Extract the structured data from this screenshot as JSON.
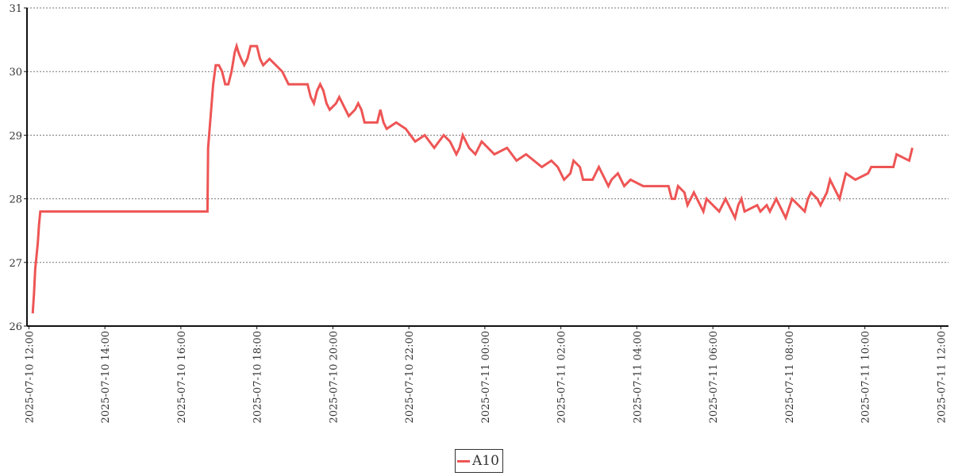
{
  "chart_data": {
    "type": "line",
    "title": "",
    "xlabel": "",
    "ylabel": "",
    "ylim": [
      26,
      31
    ],
    "xlim": [
      "2025-07-10 11:57",
      "2025-07-11 12:12"
    ],
    "y_ticks": [
      "26",
      "27",
      "28",
      "29",
      "30",
      "31"
    ],
    "x_ticks": [
      "2025-07-10 12:00",
      "2025-07-10 14:00",
      "2025-07-10 16:00",
      "2025-07-10 18:00",
      "2025-07-10 20:00",
      "2025-07-10 22:00",
      "2025-07-11 00:00",
      "2025-07-11 02:00",
      "2025-07-11 04:00",
      "2025-07-11 06:00",
      "2025-07-11 08:00",
      "2025-07-11 10:00",
      "2025-07-11 12:00"
    ],
    "grid": "horizontal-dotted",
    "legend_position": "bottom-center",
    "series": [
      {
        "name": "A10",
        "color": "#ee5555",
        "points": [
          [
            "2025-07-10 12:06",
            26.2
          ],
          [
            "2025-07-10 12:08",
            26.5
          ],
          [
            "2025-07-10 12:10",
            26.9
          ],
          [
            "2025-07-10 12:12",
            27.1
          ],
          [
            "2025-07-10 12:14",
            27.3
          ],
          [
            "2025-07-10 12:16",
            27.6
          ],
          [
            "2025-07-10 12:18",
            27.8
          ],
          [
            "2025-07-10 16:42",
            27.8
          ],
          [
            "2025-07-10 16:43",
            28.8
          ],
          [
            "2025-07-10 16:47",
            29.3
          ],
          [
            "2025-07-10 16:51",
            29.8
          ],
          [
            "2025-07-10 16:55",
            30.1
          ],
          [
            "2025-07-10 17:00",
            30.1
          ],
          [
            "2025-07-10 17:05",
            30.0
          ],
          [
            "2025-07-10 17:10",
            29.8
          ],
          [
            "2025-07-10 17:15",
            29.8
          ],
          [
            "2025-07-10 17:20",
            30.0
          ],
          [
            "2025-07-10 17:25",
            30.3
          ],
          [
            "2025-07-10 17:28",
            30.4
          ],
          [
            "2025-07-10 17:31",
            30.3
          ],
          [
            "2025-07-10 17:35",
            30.2
          ],
          [
            "2025-07-10 17:40",
            30.1
          ],
          [
            "2025-07-10 17:45",
            30.2
          ],
          [
            "2025-07-10 17:50",
            30.4
          ],
          [
            "2025-07-10 18:00",
            30.4
          ],
          [
            "2025-07-10 18:05",
            30.2
          ],
          [
            "2025-07-10 18:10",
            30.1
          ],
          [
            "2025-07-10 18:20",
            30.2
          ],
          [
            "2025-07-10 18:30",
            30.1
          ],
          [
            "2025-07-10 18:40",
            30.0
          ],
          [
            "2025-07-10 18:50",
            29.8
          ],
          [
            "2025-07-10 19:20",
            29.8
          ],
          [
            "2025-07-10 19:25",
            29.6
          ],
          [
            "2025-07-10 19:30",
            29.5
          ],
          [
            "2025-07-10 19:35",
            29.7
          ],
          [
            "2025-07-10 19:40",
            29.8
          ],
          [
            "2025-07-10 19:45",
            29.7
          ],
          [
            "2025-07-10 19:50",
            29.5
          ],
          [
            "2025-07-10 19:55",
            29.4
          ],
          [
            "2025-07-10 20:05",
            29.5
          ],
          [
            "2025-07-10 20:10",
            29.6
          ],
          [
            "2025-07-10 20:20",
            29.4
          ],
          [
            "2025-07-10 20:25",
            29.3
          ],
          [
            "2025-07-10 20:35",
            29.4
          ],
          [
            "2025-07-10 20:40",
            29.5
          ],
          [
            "2025-07-10 20:45",
            29.4
          ],
          [
            "2025-07-10 20:50",
            29.2
          ],
          [
            "2025-07-10 21:10",
            29.2
          ],
          [
            "2025-07-10 21:15",
            29.4
          ],
          [
            "2025-07-10 21:20",
            29.2
          ],
          [
            "2025-07-10 21:25",
            29.1
          ],
          [
            "2025-07-10 21:40",
            29.2
          ],
          [
            "2025-07-10 21:55",
            29.1
          ],
          [
            "2025-07-10 22:10",
            28.9
          ],
          [
            "2025-07-10 22:25",
            29.0
          ],
          [
            "2025-07-10 22:40",
            28.8
          ],
          [
            "2025-07-10 22:55",
            29.0
          ],
          [
            "2025-07-10 23:05",
            28.9
          ],
          [
            "2025-07-10 23:15",
            28.7
          ],
          [
            "2025-07-10 23:20",
            28.8
          ],
          [
            "2025-07-10 23:25",
            29.0
          ],
          [
            "2025-07-10 23:35",
            28.8
          ],
          [
            "2025-07-10 23:45",
            28.7
          ],
          [
            "2025-07-10 23:55",
            28.9
          ],
          [
            "2025-07-11 00:05",
            28.8
          ],
          [
            "2025-07-11 00:15",
            28.7
          ],
          [
            "2025-07-11 00:35",
            28.8
          ],
          [
            "2025-07-11 00:50",
            28.6
          ],
          [
            "2025-07-11 01:05",
            28.7
          ],
          [
            "2025-07-11 01:30",
            28.5
          ],
          [
            "2025-07-11 01:45",
            28.6
          ],
          [
            "2025-07-11 01:55",
            28.5
          ],
          [
            "2025-07-11 02:05",
            28.3
          ],
          [
            "2025-07-11 02:15",
            28.4
          ],
          [
            "2025-07-11 02:20",
            28.6
          ],
          [
            "2025-07-11 02:30",
            28.5
          ],
          [
            "2025-07-11 02:35",
            28.3
          ],
          [
            "2025-07-11 02:50",
            28.3
          ],
          [
            "2025-07-11 03:00",
            28.5
          ],
          [
            "2025-07-11 03:10",
            28.3
          ],
          [
            "2025-07-11 03:15",
            28.2
          ],
          [
            "2025-07-11 03:20",
            28.3
          ],
          [
            "2025-07-11 03:30",
            28.4
          ],
          [
            "2025-07-11 03:40",
            28.2
          ],
          [
            "2025-07-11 03:50",
            28.3
          ],
          [
            "2025-07-11 04:10",
            28.2
          ],
          [
            "2025-07-11 04:50",
            28.2
          ],
          [
            "2025-07-11 04:55",
            28.0
          ],
          [
            "2025-07-11 05:00",
            28.0
          ],
          [
            "2025-07-11 05:05",
            28.2
          ],
          [
            "2025-07-11 05:15",
            28.1
          ],
          [
            "2025-07-11 05:20",
            27.9
          ],
          [
            "2025-07-11 05:30",
            28.1
          ],
          [
            "2025-07-11 05:35",
            28.0
          ],
          [
            "2025-07-11 05:40",
            27.9
          ],
          [
            "2025-07-11 05:45",
            27.8
          ],
          [
            "2025-07-11 05:50",
            28.0
          ],
          [
            "2025-07-11 06:10",
            27.8
          ],
          [
            "2025-07-11 06:20",
            28.0
          ],
          [
            "2025-07-11 06:25",
            27.9
          ],
          [
            "2025-07-11 06:30",
            27.8
          ],
          [
            "2025-07-11 06:35",
            27.7
          ],
          [
            "2025-07-11 06:40",
            27.9
          ],
          [
            "2025-07-11 06:45",
            28.0
          ],
          [
            "2025-07-11 06:50",
            27.8
          ],
          [
            "2025-07-11 07:10",
            27.9
          ],
          [
            "2025-07-11 07:15",
            27.8
          ],
          [
            "2025-07-11 07:25",
            27.9
          ],
          [
            "2025-07-11 07:30",
            27.8
          ],
          [
            "2025-07-11 07:40",
            28.0
          ],
          [
            "2025-07-11 07:50",
            27.8
          ],
          [
            "2025-07-11 07:55",
            27.7
          ],
          [
            "2025-07-11 08:05",
            28.0
          ],
          [
            "2025-07-11 08:15",
            27.9
          ],
          [
            "2025-07-11 08:25",
            27.8
          ],
          [
            "2025-07-11 08:30",
            28.0
          ],
          [
            "2025-07-11 08:35",
            28.1
          ],
          [
            "2025-07-11 08:45",
            28.0
          ],
          [
            "2025-07-11 08:50",
            27.9
          ],
          [
            "2025-07-11 09:00",
            28.1
          ],
          [
            "2025-07-11 09:05",
            28.3
          ],
          [
            "2025-07-11 09:15",
            28.1
          ],
          [
            "2025-07-11 09:20",
            28.0
          ],
          [
            "2025-07-11 09:25",
            28.2
          ],
          [
            "2025-07-11 09:30",
            28.4
          ],
          [
            "2025-07-11 09:45",
            28.3
          ],
          [
            "2025-07-11 10:05",
            28.4
          ],
          [
            "2025-07-11 10:10",
            28.5
          ],
          [
            "2025-07-11 10:45",
            28.5
          ],
          [
            "2025-07-11 10:50",
            28.7
          ],
          [
            "2025-07-11 11:10",
            28.6
          ],
          [
            "2025-07-11 11:15",
            28.8
          ]
        ]
      }
    ]
  }
}
